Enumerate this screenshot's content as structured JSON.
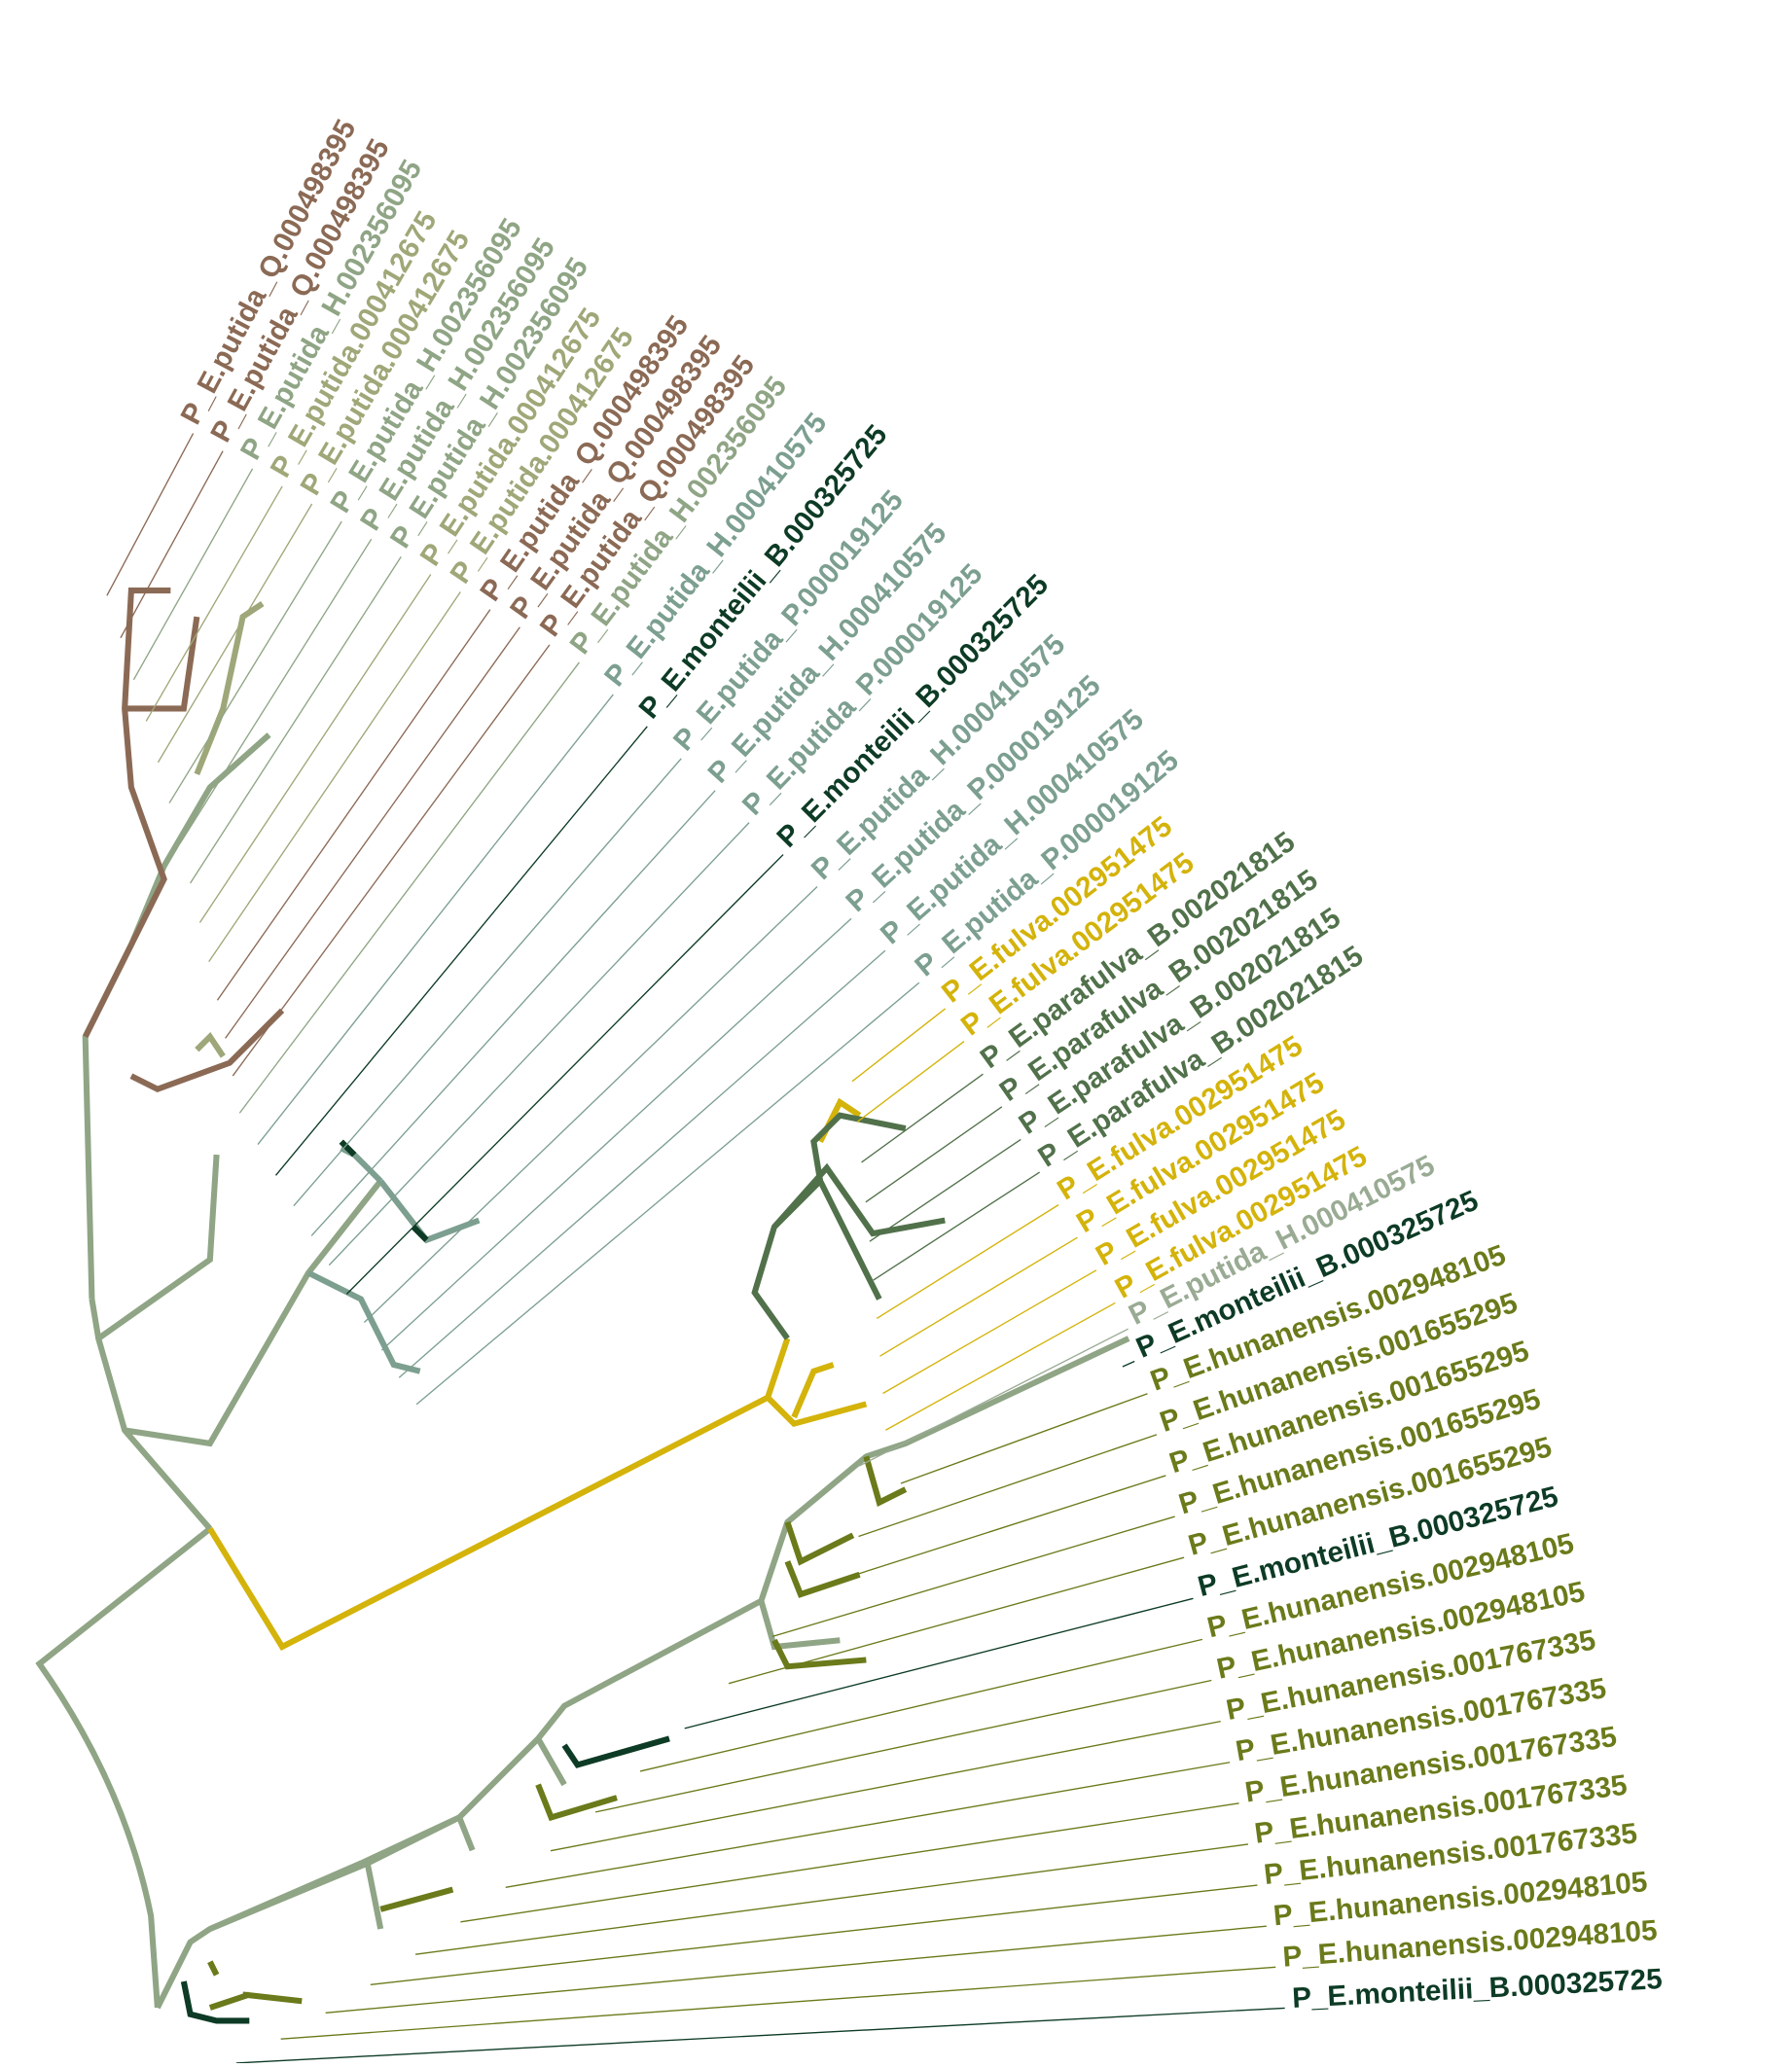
{
  "leaves": [
    {
      "label": "P_E.putida_Q.000498395",
      "color": "#8b6a55"
    },
    {
      "label": "P_E.putida_Q.000498395",
      "color": "#8b6a55"
    },
    {
      "label": "P_E.putida_H.002356095",
      "color": "#8fa585"
    },
    {
      "label": "P_E.putida.000412675",
      "color": "#a0a778"
    },
    {
      "label": "P_E.putida.000412675",
      "color": "#a0a778"
    },
    {
      "label": "P_E.putida_H.002356095",
      "color": "#8fa585"
    },
    {
      "label": "P_E.putida_H.002356095",
      "color": "#8fa585"
    },
    {
      "label": "P_E.putida_H.002356095",
      "color": "#8fa585"
    },
    {
      "label": "P_E.putida.000412675",
      "color": "#a0a778"
    },
    {
      "label": "P_E.putida.000412675",
      "color": "#a0a778"
    },
    {
      "label": "P_E.putida_Q.000498395",
      "color": "#8b6a55"
    },
    {
      "label": "P_E.putida_Q.000498395",
      "color": "#8b6a55"
    },
    {
      "label": "P_E.putida_Q.000498395",
      "color": "#8b6a55"
    },
    {
      "label": "P_E.putida_H.002356095",
      "color": "#8fa585"
    },
    {
      "label": "P_E.putida_H.000410575",
      "color": "#7c9f90"
    },
    {
      "label": "P_E.monteilii_B.000325725",
      "color": "#0d3b25"
    },
    {
      "label": "P_E.putida_P.000019125",
      "color": "#7c9f90"
    },
    {
      "label": "P_E.putida_H.000410575",
      "color": "#7c9f90"
    },
    {
      "label": "P_E.putida_P.000019125",
      "color": "#7c9f90"
    },
    {
      "label": "P_E.monteilii_B.000325725",
      "color": "#0d3b25"
    },
    {
      "label": "P_E.putida_H.000410575",
      "color": "#7c9f90"
    },
    {
      "label": "P_E.putida_P.000019125",
      "color": "#7c9f90"
    },
    {
      "label": "P_E.putida_H.000410575",
      "color": "#7c9f90"
    },
    {
      "label": "P_E.putida_P.000019125",
      "color": "#7c9f90"
    },
    {
      "label": "P_E.fulva.002951475",
      "color": "#d4b30a"
    },
    {
      "label": "P_E.fulva.002951475",
      "color": "#d4b30a"
    },
    {
      "label": "P_E.parafulva_B.002021815",
      "color": "#51714b"
    },
    {
      "label": "P_E.parafulva_B.002021815",
      "color": "#51714b"
    },
    {
      "label": "P_E.parafulva_B.002021815",
      "color": "#51714b"
    },
    {
      "label": "P_E.parafulva_B.002021815",
      "color": "#51714b"
    },
    {
      "label": "P_E.fulva.002951475",
      "color": "#d4b30a"
    },
    {
      "label": "P_E.fulva.002951475",
      "color": "#d4b30a"
    },
    {
      "label": "P_E.fulva.002951475",
      "color": "#d4b30a"
    },
    {
      "label": "P_E.fulva.002951475",
      "color": "#d4b30a"
    },
    {
      "label": "P_E.putida_H.000410575",
      "color": "#9aab94"
    },
    {
      "label": "P_E.monteilii_B.000325725",
      "color": "#0d3b25"
    },
    {
      "label": "P_E.hunanensis.002948105",
      "color": "#6b7a1a"
    },
    {
      "label": "P_E.hunanensis.001655295",
      "color": "#6b7a1a"
    },
    {
      "label": "P_E.hunanensis.001655295",
      "color": "#6b7a1a"
    },
    {
      "label": "P_E.hunanensis.001655295",
      "color": "#6b7a1a"
    },
    {
      "label": "P_E.hunanensis.001655295",
      "color": "#6b7a1a"
    },
    {
      "label": "P_E.monteilii_B.000325725",
      "color": "#0d3b25"
    },
    {
      "label": "P_E.hunanensis.002948105",
      "color": "#6b7a1a"
    },
    {
      "label": "P_E.hunanensis.002948105",
      "color": "#6b7a1a"
    },
    {
      "label": "P_E.hunanensis.001767335",
      "color": "#6b7a1a"
    },
    {
      "label": "P_E.hunanensis.001767335",
      "color": "#6b7a1a"
    },
    {
      "label": "P_E.hunanensis.001767335",
      "color": "#6b7a1a"
    },
    {
      "label": "P_E.hunanensis.001767335",
      "color": "#6b7a1a"
    },
    {
      "label": "P_E.hunanensis.001767335",
      "color": "#6b7a1a"
    },
    {
      "label": "P_E.hunanensis.002948105",
      "color": "#6b7a1a"
    },
    {
      "label": "P_E.hunanensis.002948105",
      "color": "#6b7a1a"
    },
    {
      "label": "P_E.monteilii_B.000325725",
      "color": "#0d3b25"
    }
  ]
}
